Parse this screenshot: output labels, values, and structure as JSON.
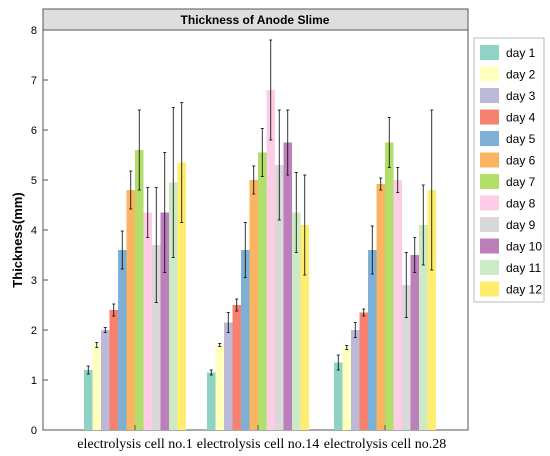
{
  "chart_data": {
    "type": "bar",
    "title": "Thickness of Anode Slime",
    "xlabel": "",
    "ylabel": "Thickness(mm)",
    "ylim": [
      0,
      8
    ],
    "yticks": [
      "0",
      "1",
      "2",
      "3",
      "4",
      "5",
      "6",
      "7",
      "8"
    ],
    "grid": false,
    "legend_position": "right",
    "categories": [
      "electrolysis cell no.1",
      "electrolysis cell no.14",
      "electrolysis cell no.28"
    ],
    "series": [
      {
        "name": "day 1",
        "color": "#8fd3c4",
        "values": [
          1.2,
          1.15,
          1.35
        ],
        "errors": [
          0.08,
          0.05,
          0.15
        ]
      },
      {
        "name": "day 2",
        "color": "#ffffbe",
        "values": [
          1.7,
          1.7,
          1.65
        ],
        "errors": [
          0.05,
          0.03,
          0.04
        ]
      },
      {
        "name": "day 3",
        "color": "#bcb8d8",
        "values": [
          2.0,
          2.15,
          2.0
        ],
        "errors": [
          0.05,
          0.2,
          0.15
        ]
      },
      {
        "name": "day 4",
        "color": "#f7816f",
        "values": [
          2.4,
          2.5,
          2.35
        ],
        "errors": [
          0.12,
          0.12,
          0.07
        ]
      },
      {
        "name": "day 5",
        "color": "#7eb0d5",
        "values": [
          3.6,
          3.6,
          3.6
        ],
        "errors": [
          0.38,
          0.55,
          0.48
        ]
      },
      {
        "name": "day 6",
        "color": "#fbb461",
        "values": [
          4.8,
          5.0,
          4.92
        ],
        "errors": [
          0.38,
          0.28,
          0.12
        ]
      },
      {
        "name": "day 7",
        "color": "#b2de6a",
        "values": [
          5.6,
          5.55,
          5.75
        ],
        "errors": [
          0.8,
          0.48,
          0.5
        ]
      },
      {
        "name": "day 8",
        "color": "#fccde5",
        "values": [
          4.35,
          6.8,
          5.0
        ],
        "errors": [
          0.5,
          1.0,
          0.25
        ]
      },
      {
        "name": "day 9",
        "color": "#d9d9d9",
        "values": [
          3.7,
          5.3,
          2.9
        ],
        "errors": [
          1.15,
          1.1,
          0.65
        ]
      },
      {
        "name": "day 10",
        "color": "#bb80bb",
        "values": [
          4.35,
          5.75,
          3.5
        ],
        "errors": [
          1.2,
          0.65,
          0.35
        ]
      },
      {
        "name": "day 11",
        "color": "#ccebc5",
        "values": [
          4.95,
          4.35,
          4.1
        ],
        "errors": [
          1.5,
          0.8,
          0.8
        ]
      },
      {
        "name": "day 12",
        "color": "#ffed6f",
        "values": [
          5.35,
          4.1,
          4.8
        ],
        "errors": [
          1.2,
          1.0,
          1.6
        ]
      }
    ]
  }
}
